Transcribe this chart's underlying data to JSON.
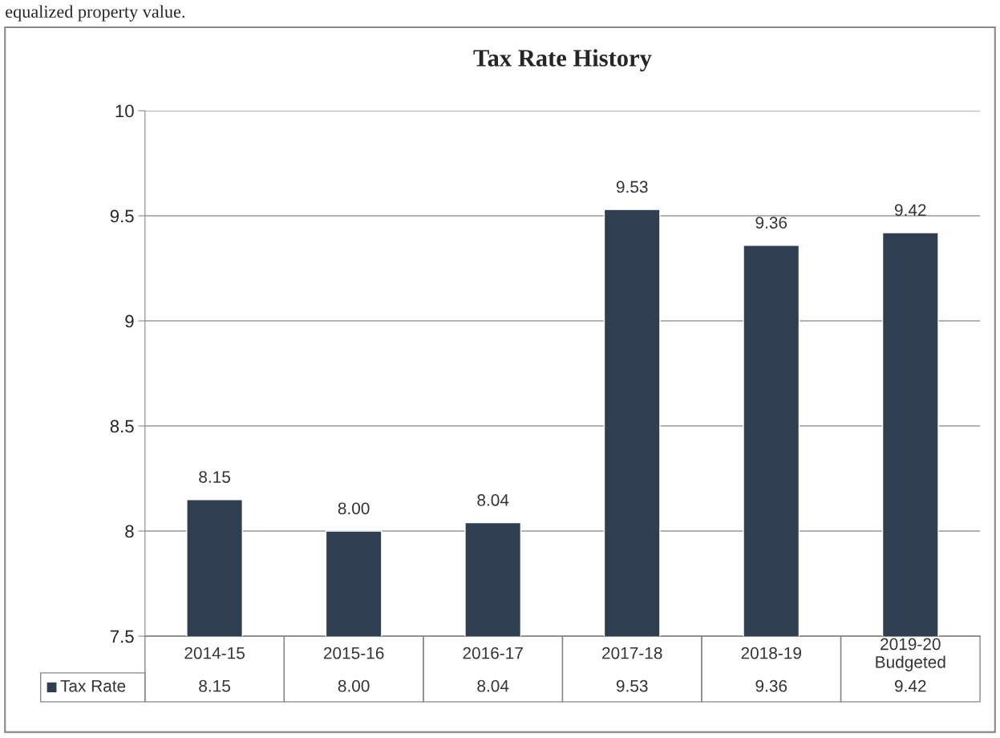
{
  "chart_data": {
    "type": "bar",
    "title": "Tax Rate History",
    "annotations": [
      "equalized property value."
    ],
    "categories": [
      "2014-15",
      "2015-16",
      "2016-17",
      "2017-18",
      "2018-19",
      "2019-20\nBudgeted"
    ],
    "series": [
      {
        "name": "Tax Rate",
        "color": "#2f3e50",
        "values": [
          8.15,
          8.0,
          8.04,
          9.53,
          9.36,
          9.42
        ],
        "value_labels": [
          "8.15",
          "8.00",
          "8.04",
          "9.53",
          "9.36",
          "9.42"
        ]
      }
    ],
    "ylim": [
      7.5,
      10
    ],
    "yticks": [
      7.5,
      8,
      8.5,
      9,
      9.5,
      10
    ],
    "grid": "y",
    "legend": "bottom"
  }
}
